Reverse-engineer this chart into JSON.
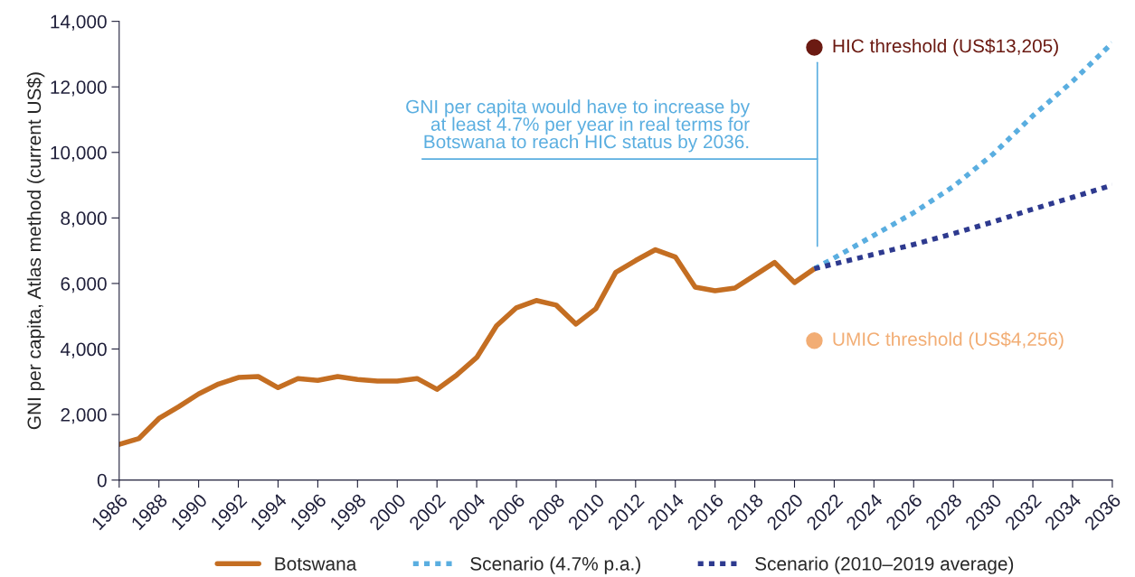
{
  "chart_data": {
    "type": "line",
    "xlabel": null,
    "ylabel": "GNI per capita, Atlas method (current US$)",
    "xlim": [
      1986,
      2036
    ],
    "xticks": [
      1986,
      1988,
      1990,
      1992,
      1994,
      1996,
      1998,
      2000,
      2002,
      2004,
      2006,
      2008,
      2010,
      2012,
      2014,
      2016,
      2018,
      2020,
      2022,
      2024,
      2026,
      2028,
      2030,
      2032,
      2034,
      2036
    ],
    "ylim": [
      0,
      14000
    ],
    "yticks": [
      {
        "value": 0,
        "label": "0"
      },
      {
        "value": 2000,
        "label": "2,000"
      },
      {
        "value": 4000,
        "label": "4,000"
      },
      {
        "value": 6000,
        "label": "6,000"
      },
      {
        "value": 8000,
        "label": "8,000"
      },
      {
        "value": 10000,
        "label": "10,000"
      },
      {
        "value": 12000,
        "label": "12,000"
      },
      {
        "value": 14000,
        "label": "14,000"
      }
    ],
    "grid": false,
    "legend": "bottom",
    "series": [
      {
        "name": "Botswana",
        "color": "#c46e22",
        "line_style": "solid",
        "x": [
          1986,
          1987,
          1988,
          1989,
          1990,
          1991,
          1992,
          1993,
          1994,
          1995,
          1996,
          1997,
          1998,
          1999,
          2000,
          2001,
          2002,
          2003,
          2004,
          2005,
          2006,
          2007,
          2008,
          2009,
          2010,
          2011,
          2012,
          2013,
          2014,
          2015,
          2016,
          2017,
          2018,
          2019,
          2020,
          2021
        ],
        "values": [
          1090,
          1270,
          1880,
          2240,
          2630,
          2930,
          3130,
          3160,
          2820,
          3100,
          3040,
          3160,
          3070,
          3020,
          3020,
          3100,
          2770,
          3210,
          3740,
          4710,
          5260,
          5480,
          5340,
          4760,
          5230,
          6340,
          6700,
          7030,
          6810,
          5890,
          5780,
          5860,
          6250,
          6640,
          6030,
          6450
        ]
      },
      {
        "name": "Scenario (4.7% p.a.)",
        "color": "#5aaee0",
        "line_style": "dotted",
        "x": [
          2021,
          2022,
          2024,
          2026,
          2028,
          2030,
          2032,
          2034,
          2036
        ],
        "values": [
          6450,
          6780,
          7470,
          8160,
          8960,
          9950,
          11120,
          12170,
          13340
        ]
      },
      {
        "name": "Scenario (2010–2019 average)",
        "color": "#2e3a8f",
        "line_style": "dotted",
        "x": [
          2021,
          2024,
          2026,
          2028,
          2030,
          2032,
          2034,
          2036
        ],
        "values": [
          6450,
          6890,
          7190,
          7520,
          7880,
          8270,
          8630,
          9000
        ]
      },
      {
        "name": "HIC threshold (US$13,205)",
        "type": "scatter",
        "marker": "circle",
        "color": "#6b1a12",
        "x": [
          2021
        ],
        "values": [
          13205
        ]
      },
      {
        "name": "UMIC threshold (US$4,256)",
        "type": "scatter",
        "marker": "circle",
        "color": "#f2ad74",
        "x": [
          2021
        ],
        "values": [
          4256
        ]
      }
    ],
    "annotations": [
      "GNI per capita would have to increase by\nat least 4.7% per year in real terms for\nBotswana to reach HIC status by 2036."
    ]
  }
}
